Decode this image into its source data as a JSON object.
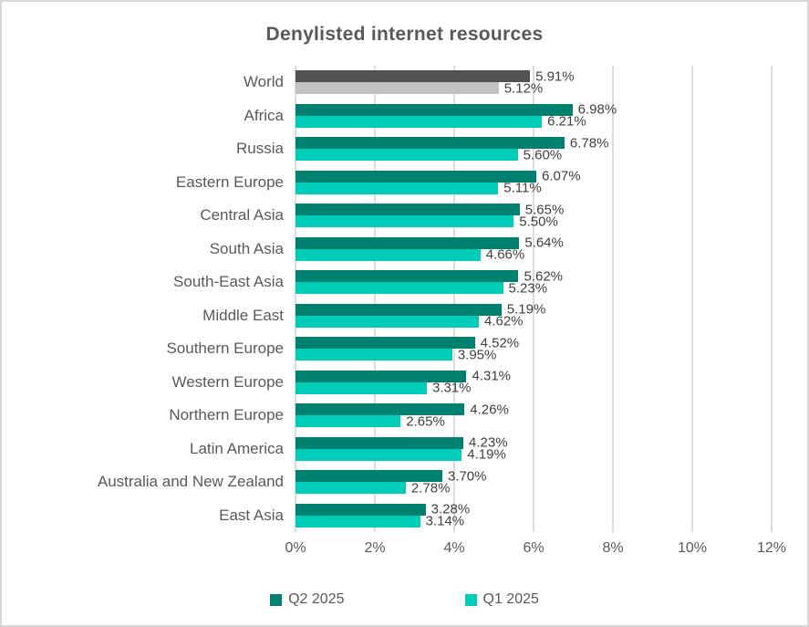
{
  "chart_data": {
    "type": "bar",
    "orientation": "horizontal",
    "title": "Denylisted internet resources",
    "categories": [
      "World",
      "Africa",
      "Russia",
      "Eastern Europe",
      "Central Asia",
      "South Asia",
      "South-East Asia",
      "Middle East",
      "Southern Europe",
      "Western Europe",
      "Northern Europe",
      "Latin America",
      "Australia and New Zealand",
      "East Asia"
    ],
    "series": [
      {
        "name": "Q2 2025",
        "color": "#00806e",
        "neutral_color": "#525252",
        "values": [
          5.91,
          6.98,
          6.78,
          6.07,
          5.65,
          5.64,
          5.62,
          5.19,
          4.52,
          4.31,
          4.26,
          4.23,
          3.7,
          3.28
        ]
      },
      {
        "name": "Q1 2025",
        "color": "#00cdb8",
        "neutral_color": "#c2c2c2",
        "values": [
          5.12,
          6.21,
          5.6,
          5.11,
          5.5,
          4.66,
          5.23,
          4.62,
          3.95,
          3.31,
          2.65,
          4.19,
          2.78,
          3.14
        ]
      }
    ],
    "neutral_category": "World",
    "value_label_suffix": "%",
    "xlim": [
      0,
      12
    ],
    "xtick_values": [
      0,
      2,
      4,
      6,
      8,
      10,
      12
    ],
    "xticks": [
      "0%",
      "2%",
      "4%",
      "6%",
      "8%",
      "10%",
      "12%"
    ],
    "grid": true,
    "legend_position": "bottom",
    "colors": {
      "grid": "#dcdcdc",
      "title_text": "#595959",
      "axis_text": "#595959",
      "value_text": "#3f3f3f",
      "frame_border": "#d6d6d6"
    }
  }
}
